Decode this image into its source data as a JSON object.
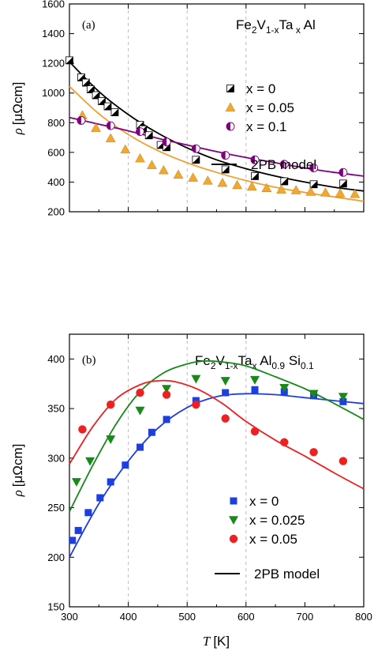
{
  "chart_data": [
    {
      "type": "scatter",
      "panel_label": "(a)",
      "title": "Fe2V1-xTa x Al",
      "title_parts": {
        "pre": "Fe",
        "sub1": "2",
        "mid": "V",
        "sub2": "1-x",
        "mid2": "Ta",
        "sub3": " x",
        "post": " Al"
      },
      "ylabel": "ρ [μΩcm]",
      "ylabel_parts": {
        "sym": "ρ",
        "unit": "[μΩcm]"
      },
      "xlabel": "",
      "xlim": [
        300,
        800
      ],
      "ylim": [
        200,
        1600
      ],
      "yticks": [
        200,
        400,
        600,
        800,
        1000,
        1200,
        1400,
        1600
      ],
      "xticks": [
        300,
        400,
        500,
        600,
        700,
        800
      ],
      "grid": "dashed vertical lines at x = 400, 500, 600",
      "legend_position": "right",
      "series": [
        {
          "name": "x = 0",
          "marker": "half-filled-square",
          "color": "#000000",
          "points": [
            [
              300,
              1220
            ],
            [
              320,
              1105
            ],
            [
              328,
              1070
            ],
            [
              336,
              1025
            ],
            [
              345,
              985
            ],
            [
              355,
              945
            ],
            [
              365,
              910
            ],
            [
              377,
              870
            ],
            [
              420,
              785
            ],
            [
              425,
              755
            ],
            [
              435,
              715
            ],
            [
              455,
              650
            ],
            [
              465,
              635
            ],
            [
              515,
              550
            ],
            [
              565,
              485
            ],
            [
              615,
              440
            ],
            [
              665,
              405
            ],
            [
              715,
              385
            ],
            [
              765,
              390
            ]
          ]
        },
        {
          "name": "x = 0.05",
          "marker": "triangle-up",
          "color": "#F0A830",
          "points": [
            [
              322,
              850
            ],
            [
              345,
              765
            ],
            [
              370,
              695
            ],
            [
              395,
              620
            ],
            [
              420,
              560
            ],
            [
              440,
              515
            ],
            [
              460,
              480
            ],
            [
              485,
              450
            ],
            [
              510,
              430
            ],
            [
              535,
              410
            ],
            [
              560,
              395
            ],
            [
              585,
              380
            ],
            [
              610,
              370
            ],
            [
              635,
              360
            ],
            [
              660,
              350
            ],
            [
              685,
              345
            ],
            [
              710,
              335
            ],
            [
              735,
              330
            ],
            [
              760,
              325
            ],
            [
              785,
              320
            ]
          ]
        },
        {
          "name": "x = 0.1",
          "marker": "half-filled-circle",
          "color": "#800080",
          "points": [
            [
              320,
              815
            ],
            [
              370,
              780
            ],
            [
              420,
              740
            ],
            [
              465,
              670
            ],
            [
              515,
              625
            ],
            [
              565,
              580
            ],
            [
              615,
              550
            ],
            [
              665,
              520
            ],
            [
              715,
              495
            ],
            [
              765,
              465
            ]
          ]
        },
        {
          "name": "2PB model",
          "marker": "line",
          "color": "#000000",
          "points": [
            [
              300,
              1210
            ],
            [
              350,
              1010
            ],
            [
              400,
              855
            ],
            [
              450,
              730
            ],
            [
              500,
              630
            ],
            [
              550,
              550
            ],
            [
              600,
              490
            ],
            [
              650,
              440
            ],
            [
              700,
              400
            ],
            [
              750,
              365
            ],
            [
              800,
              340
            ]
          ]
        },
        {
          "name": "",
          "marker": "line",
          "color": "#F0A030",
          "points": [
            [
              300,
              1045
            ],
            [
              350,
              860
            ],
            [
              400,
              720
            ],
            [
              450,
              612
            ],
            [
              500,
              530
            ],
            [
              550,
              465
            ],
            [
              600,
              410
            ],
            [
              650,
              365
            ],
            [
              700,
              330
            ],
            [
              750,
              300
            ],
            [
              800,
              270
            ]
          ]
        },
        {
          "name": "",
          "marker": "line",
          "color": "#800080",
          "points": [
            [
              300,
              835
            ],
            [
              350,
              790
            ],
            [
              400,
              745
            ],
            [
              450,
              695
            ],
            [
              500,
              650
            ],
            [
              550,
              605
            ],
            [
              600,
              565
            ],
            [
              650,
              530
            ],
            [
              700,
              495
            ],
            [
              750,
              465
            ],
            [
              800,
              440
            ]
          ]
        }
      ]
    },
    {
      "type": "scatter",
      "panel_label": "(b)",
      "title": "Fe2V1-xTa x Al0.9 Si0.1",
      "title_parts": {
        "pre": "Fe",
        "sub1": "2",
        "mid": "V",
        "sub2": "1-x",
        "mid2": "Ta",
        "sub3": "x",
        "mid3": " Al",
        "sub4": "0.9",
        "mid4": " Si",
        "sub5": "0.1"
      },
      "ylabel": "ρ [μΩcm]",
      "ylabel_parts": {
        "sym": "ρ",
        "unit": "[μΩcm]"
      },
      "xlabel": "T [K]",
      "xlabel_parts": {
        "sym": "T",
        "unit": "[K]"
      },
      "xlim": [
        300,
        800
      ],
      "ylim": [
        150,
        425
      ],
      "yticks": [
        150,
        200,
        250,
        300,
        350,
        400
      ],
      "xticks": [
        300,
        400,
        500,
        600,
        700,
        800
      ],
      "xtick_labels": [
        "300",
        "400",
        "500",
        "600",
        "700",
        "800"
      ],
      "grid": "dashed vertical lines at x = 400, 500, 600",
      "legend_position": "bottom-right",
      "series": [
        {
          "name": "x = 0",
          "marker": "square",
          "color": "#1E3FE0",
          "points": [
            [
              305,
              217
            ],
            [
              315,
              227
            ],
            [
              332,
              245
            ],
            [
              352,
              260
            ],
            [
              370,
              276
            ],
            [
              395,
              293
            ],
            [
              420,
              311
            ],
            [
              440,
              326
            ],
            [
              465,
              339
            ],
            [
              515,
              358
            ],
            [
              565,
              366
            ],
            [
              615,
              369
            ],
            [
              665,
              367
            ],
            [
              715,
              363
            ],
            [
              765,
              357
            ]
          ]
        },
        {
          "name": "x = 0.025",
          "marker": "triangle-down",
          "color": "#178A17",
          "points": [
            [
              312,
              276
            ],
            [
              335,
              297
            ],
            [
              370,
              319
            ],
            [
              420,
              348
            ],
            [
              465,
              370
            ],
            [
              515,
              380
            ],
            [
              565,
              378
            ],
            [
              615,
              379
            ],
            [
              665,
              371
            ],
            [
              715,
              365
            ],
            [
              765,
              362
            ]
          ]
        },
        {
          "name": "x = 0.05",
          "marker": "circle",
          "color": "#EE2020",
          "points": [
            [
              322,
              329
            ],
            [
              370,
              354
            ],
            [
              420,
              366
            ],
            [
              465,
              364
            ],
            [
              515,
              354
            ],
            [
              565,
              340
            ],
            [
              615,
              327
            ],
            [
              665,
              316
            ],
            [
              715,
              306
            ],
            [
              765,
              297
            ]
          ]
        },
        {
          "name": "2PB model",
          "marker": "line",
          "color": "#000000",
          "points": []
        },
        {
          "name": "",
          "marker": "line",
          "color": "#1E3FE0",
          "points": [
            [
              300,
              200
            ],
            [
              350,
              254
            ],
            [
              400,
              297
            ],
            [
              450,
              330
            ],
            [
              500,
              351
            ],
            [
              550,
              362
            ],
            [
              600,
              365
            ],
            [
              650,
              364
            ],
            [
              700,
              361
            ],
            [
              750,
              358
            ],
            [
              800,
              355
            ]
          ]
        },
        {
          "name": "",
          "marker": "line",
          "color": "#178A17",
          "points": [
            [
              300,
              246
            ],
            [
              340,
              293
            ],
            [
              380,
              335
            ],
            [
              420,
              367
            ],
            [
              460,
              386
            ],
            [
              500,
              395
            ],
            [
              530,
              398
            ],
            [
              560,
              397
            ],
            [
              600,
              393
            ],
            [
              650,
              382
            ],
            [
              700,
              370
            ],
            [
              750,
              355
            ],
            [
              800,
              339
            ]
          ]
        },
        {
          "name": "",
          "marker": "line",
          "color": "#EE2020",
          "points": [
            [
              300,
              294
            ],
            [
              340,
              332
            ],
            [
              380,
              360
            ],
            [
              420,
              374
            ],
            [
              450,
              378
            ],
            [
              480,
              377
            ],
            [
              520,
              369
            ],
            [
              560,
              355
            ],
            [
              600,
              337
            ],
            [
              650,
              318
            ],
            [
              700,
              302
            ],
            [
              750,
              285
            ],
            [
              800,
              269
            ]
          ]
        }
      ]
    }
  ],
  "colors": {
    "background": "#ffffff",
    "axis": "#000000",
    "grid": "#bbbbbb"
  }
}
